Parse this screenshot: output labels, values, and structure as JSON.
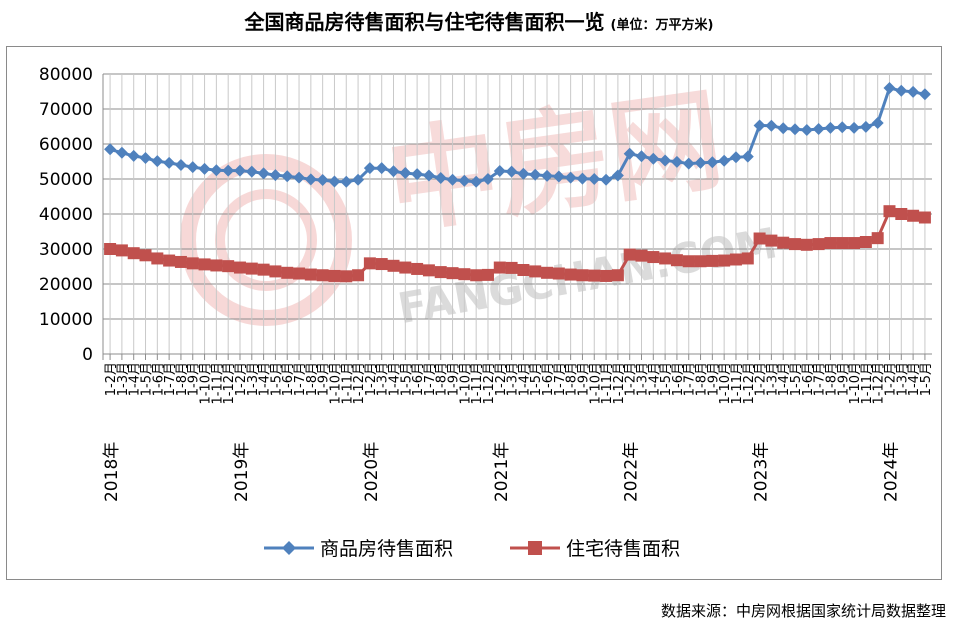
{
  "title": "全国商品房待售面积与住宅待售面积一览",
  "unit": "(单位：万平方米)",
  "source": "数据来源：中房网根据国家统计局数据整理",
  "watermark": {
    "cn": "中房网",
    "en": "FANGCHAN.COM"
  },
  "chart_data": {
    "type": "line",
    "ylim": [
      0,
      80000
    ],
    "yticks": [
      0,
      10000,
      20000,
      30000,
      40000,
      50000,
      60000,
      70000,
      80000
    ],
    "x": [
      "2018年1-2月",
      "3月",
      "4月",
      "5月",
      "6月",
      "7月",
      "8月",
      "9月",
      "10月",
      "11月",
      "12月",
      "2019年1-2月",
      "3月",
      "4月",
      "5月",
      "6月",
      "7月",
      "8月",
      "9月",
      "10月",
      "11月",
      "12月",
      "2020年1-2月",
      "3月",
      "4月",
      "5月",
      "6月",
      "7月",
      "8月",
      "9月",
      "10月",
      "11月",
      "12月",
      "2021年1-2月",
      "3月",
      "4月",
      "5月",
      "6月",
      "7月",
      "8月",
      "9月",
      "10月",
      "11月",
      "12月",
      "2022年1-2月",
      "3月",
      "4月",
      "5月",
      "6月",
      "7月",
      "8月",
      "9月",
      "10月",
      "11月",
      "12月",
      "2023年1-2月",
      "3月",
      "4月",
      "5月",
      "6月",
      "7月",
      "8月",
      "9月",
      "10月",
      "11月",
      "12月",
      "2024年1-2月",
      "3月",
      "4月",
      "5月"
    ],
    "xtick_labels": [
      "1-2月",
      "1-3月",
      "1-4月",
      "1-5月",
      "1-6月",
      "1-7月",
      "1-8月",
      "1-9月",
      "1-10月",
      "1-11月",
      "1-12月",
      "1-2月",
      "1-3月",
      "1-4月",
      "1-5月",
      "1-6月",
      "1-7月",
      "1-8月",
      "1-9月",
      "1-10月",
      "1-11月",
      "1-12月",
      "1-2月",
      "1-3月",
      "1-4月",
      "1-5月",
      "1-6月",
      "1-7月",
      "1-8月",
      "1-9月",
      "1-10月",
      "1-11月",
      "1-12月",
      "1-2月",
      "1-3月",
      "1-4月",
      "1-5月",
      "1-6月",
      "1-7月",
      "1-8月",
      "1-9月",
      "1-10月",
      "1-11月",
      "1-12月",
      "1-2月",
      "1-3月",
      "1-4月",
      "1-5月",
      "1-6月",
      "1-7月",
      "1-8月",
      "1-9月",
      "1-10月",
      "1-11月",
      "1-12月",
      "1-2月",
      "1-3月",
      "1-4月",
      "1-5月",
      "1-6月",
      "1-7月",
      "1-8月",
      "1-9月",
      "1-10月",
      "1-11月",
      "1-12月",
      "1-2月",
      "1-3月",
      "1-4月",
      "1-5月"
    ],
    "year_labels": [
      {
        "label": "2018年",
        "index": 0
      },
      {
        "label": "2019年",
        "index": 11
      },
      {
        "label": "2020年",
        "index": 22
      },
      {
        "label": "2021年",
        "index": 33
      },
      {
        "label": "2022年",
        "index": 44
      },
      {
        "label": "2023年",
        "index": 55
      },
      {
        "label": "2024年",
        "index": 66
      }
    ],
    "grid": true,
    "legend": "bottom",
    "series": [
      {
        "name": "商品房待售面积",
        "color": "#4f81bd",
        "marker": "diamond",
        "values": [
          58500,
          57500,
          56600,
          56000,
          55100,
          54600,
          54000,
          53400,
          52900,
          52500,
          52400,
          52400,
          52100,
          51600,
          51100,
          50800,
          50400,
          49900,
          49700,
          49300,
          49200,
          49800,
          53100,
          53100,
          52200,
          51700,
          51400,
          51000,
          50300,
          49800,
          49500,
          49200,
          50000,
          52300,
          52100,
          51500,
          51200,
          50900,
          50700,
          50400,
          50100,
          50000,
          49800,
          51000,
          57200,
          56500,
          55800,
          55300,
          54900,
          54400,
          54600,
          54800,
          55200,
          56200,
          56400,
          65300,
          65200,
          64500,
          64200,
          64000,
          64300,
          64600,
          64800,
          64600,
          64900,
          66000,
          76000,
          75200,
          74900,
          74200
        ]
      },
      {
        "name": "住宅待售面积",
        "color": "#c0504d",
        "marker": "square",
        "values": [
          30000,
          29600,
          28800,
          28200,
          27300,
          26700,
          26300,
          25900,
          25600,
          25300,
          25100,
          24700,
          24400,
          24100,
          23600,
          23200,
          23000,
          22700,
          22500,
          22300,
          22200,
          22500,
          25900,
          25700,
          25200,
          24700,
          24300,
          23900,
          23400,
          23100,
          22800,
          22500,
          22600,
          24700,
          24600,
          24000,
          23600,
          23200,
          23000,
          22700,
          22500,
          22400,
          22300,
          22500,
          28400,
          28100,
          27700,
          27300,
          26800,
          26500,
          26500,
          26600,
          26700,
          27000,
          27300,
          33000,
          32400,
          31800,
          31400,
          31200,
          31400,
          31700,
          31700,
          31700,
          32000,
          33100,
          40800,
          40000,
          39500,
          39000
        ]
      }
    ]
  }
}
